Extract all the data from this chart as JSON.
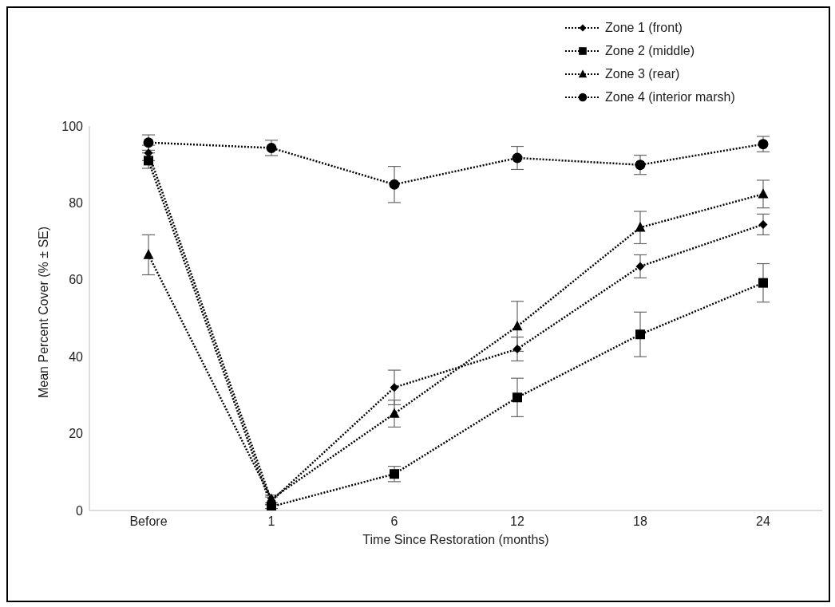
{
  "chart_data": {
    "type": "line",
    "xlabel": "Time Since Restoration (months)",
    "ylabel": "Mean Percent Cover (% ± SE)",
    "categories": [
      "Before",
      "1",
      "6",
      "12",
      "18",
      "24"
    ],
    "ylim": [
      0,
      100
    ],
    "yticks": [
      0,
      20,
      40,
      60,
      80,
      100
    ],
    "grid": false,
    "legend": "top right",
    "line_style": "dotted",
    "series": [
      {
        "name": "Zone 1 (front)",
        "color": "#000000",
        "marker": "diamond",
        "values": [
          93,
          2.5,
          32,
          42,
          63.5,
          74.4
        ],
        "errors": [
          2,
          1,
          4.5,
          3.1,
          3,
          2.7
        ]
      },
      {
        "name": "Zone 2 (middle)",
        "color": "#000000",
        "marker": "square",
        "values": [
          91,
          1,
          9.5,
          29.4,
          45.8,
          59.2
        ],
        "errors": [
          2,
          0.5,
          2,
          5,
          5.8,
          5
        ]
      },
      {
        "name": "Zone 3 (rear)",
        "color": "#000000",
        "marker": "triangle",
        "values": [
          66.5,
          3,
          25.2,
          47.9,
          73.6,
          82.3
        ],
        "errors": [
          5.2,
          1,
          3.5,
          6.5,
          4.2,
          3.6
        ]
      },
      {
        "name": "Zone 4 (interior marsh)",
        "color": "#000000",
        "marker": "circle",
        "values": [
          95.7,
          94.3,
          84.8,
          91.7,
          89.9,
          95.3
        ],
        "errors": [
          2,
          2,
          4.7,
          3,
          2.5,
          2
        ]
      }
    ]
  }
}
